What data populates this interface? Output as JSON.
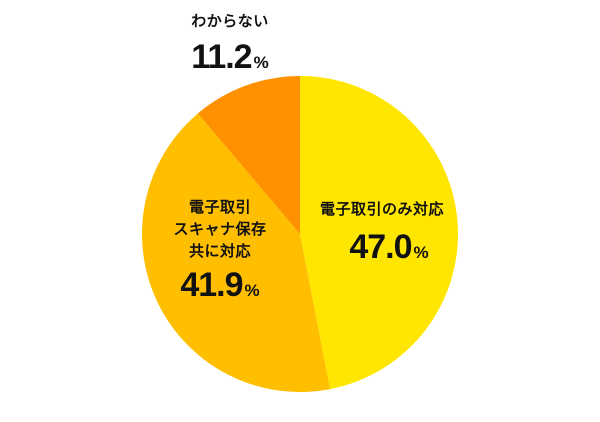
{
  "chart_data": {
    "type": "pie",
    "title": "",
    "start_angle": "12 o'clock, clockwise",
    "categories": [
      "電子取引のみ対応",
      "電子取引 スキャナ保存 共に対応",
      "わからない"
    ],
    "values": [
      47.0,
      41.9,
      11.2
    ],
    "unit": "%",
    "colors": [
      "#FFE600",
      "#FFBF00",
      "#FF9100"
    ],
    "labels": [
      {
        "lines": [
          "電子取引のみ対応"
        ],
        "value": "47.0",
        "unit": "%"
      },
      {
        "lines": [
          "電子取引",
          "スキャナ保存",
          "共に対応"
        ],
        "value": "41.9",
        "unit": "%"
      },
      {
        "lines": [
          "わからない"
        ],
        "value": "11.2",
        "unit": "%"
      }
    ]
  }
}
